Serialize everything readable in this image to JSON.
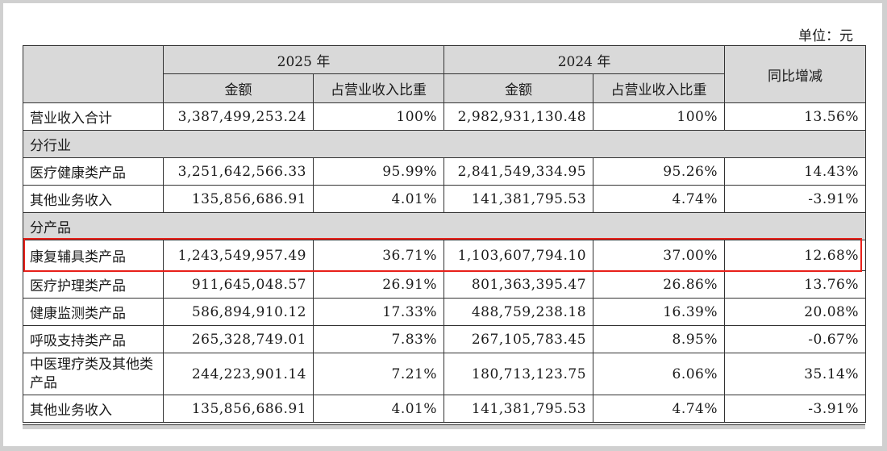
{
  "unit_label": "单位：元",
  "header": {
    "year_2025": "2025 年",
    "year_2024": "2024 年",
    "yoy": "同比增减",
    "amount": "金额",
    "share": "占营业收入比重"
  },
  "highlight_color": "#e8201a",
  "rows": [
    {
      "type": "data",
      "label": "营业收入合计",
      "amt2025": "3,387,499,253.24",
      "pct2025": "100%",
      "amt2024": "2,982,931,130.48",
      "pct2024": "100%",
      "yoy": "13.56%"
    },
    {
      "type": "section",
      "label": "分行业"
    },
    {
      "type": "data",
      "label": "医疗健康类产品",
      "amt2025": "3,251,642,566.33",
      "pct2025": "95.99%",
      "amt2024": "2,841,549,334.95",
      "pct2024": "95.26%",
      "yoy": "14.43%"
    },
    {
      "type": "data",
      "label": "其他业务收入",
      "amt2025": "135,856,686.91",
      "pct2025": "4.01%",
      "amt2024": "141,381,795.53",
      "pct2024": "4.74%",
      "yoy": "-3.91%"
    },
    {
      "type": "section",
      "label": "分产品"
    },
    {
      "type": "data",
      "highlight": true,
      "label": "康复辅具类产品",
      "amt2025": "1,243,549,957.49",
      "pct2025": "36.71%",
      "amt2024": "1,103,607,794.10",
      "pct2024": "37.00%",
      "yoy": "12.68%"
    },
    {
      "type": "data",
      "label": "医疗护理类产品",
      "amt2025": "911,645,048.57",
      "pct2025": "26.91%",
      "amt2024": "801,363,395.47",
      "pct2024": "26.86%",
      "yoy": "13.76%"
    },
    {
      "type": "data",
      "label": "健康监测类产品",
      "amt2025": "586,894,910.12",
      "pct2025": "17.33%",
      "amt2024": "488,759,238.18",
      "pct2024": "16.39%",
      "yoy": "20.08%"
    },
    {
      "type": "data",
      "label": "呼吸支持类产品",
      "amt2025": "265,328,749.01",
      "pct2025": "7.83%",
      "amt2024": "267,105,783.45",
      "pct2024": "8.95%",
      "yoy": "-0.67%"
    },
    {
      "type": "data",
      "tall": true,
      "label": "中医理疗类及其他类产品",
      "amt2025": "244,223,901.14",
      "pct2025": "7.21%",
      "amt2024": "180,713,123.75",
      "pct2024": "6.06%",
      "yoy": "35.14%"
    },
    {
      "type": "data",
      "label": "其他业务收入",
      "amt2025": "135,856,686.91",
      "pct2025": "4.01%",
      "amt2024": "141,381,795.53",
      "pct2024": "4.74%",
      "yoy": "-3.91%"
    }
  ]
}
